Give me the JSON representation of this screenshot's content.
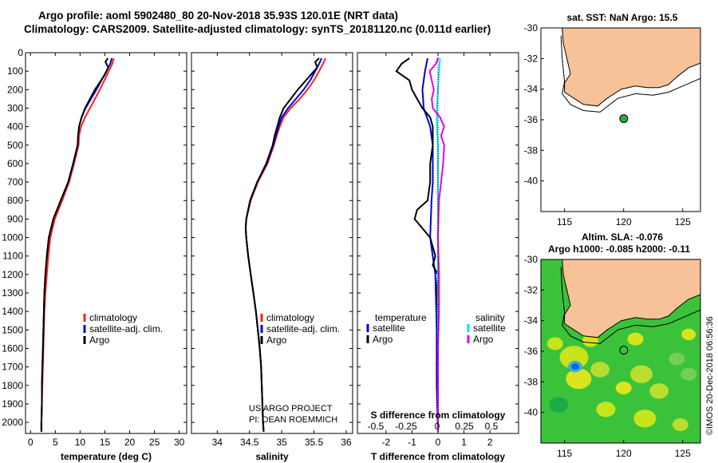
{
  "header": {
    "title_line1": "Argo profile: aoml 5902480_80 20-Nov-2018 35.93S 120.01E (NRT data)",
    "title_line2": "Climatology: CARS2009. Satellite-adjusted climatology: synTS_20181120.nc (0.011d earlier)"
  },
  "colors": {
    "climatology": "#ff2020",
    "satellite": "#0000e0",
    "argo": "#000000",
    "salinity_satellite": "#00e6e6",
    "salinity_argo": "#e600e6",
    "land": "#f7c297",
    "float_marker": "#2aa84a"
  },
  "depth_axis": {
    "ticks": [
      0,
      100,
      200,
      300,
      400,
      500,
      600,
      700,
      800,
      900,
      1000,
      1100,
      1200,
      1300,
      1400,
      1500,
      1600,
      1700,
      1800,
      1900,
      2000
    ],
    "range": [
      0,
      2060
    ]
  },
  "chart_data": [
    {
      "type": "line",
      "id": "temperature",
      "xlabel": "temperature (deg C)",
      "xlim": [
        -1,
        31.5
      ],
      "xticks": [
        0,
        5,
        10,
        15,
        20,
        25,
        30
      ],
      "ylim": [
        2060,
        0
      ],
      "legend": [
        "climatology",
        "satellite-adj. clim.",
        "Argo"
      ],
      "series": [
        {
          "name": "climatology",
          "depth": [
            30,
            60,
            100,
            150,
            200,
            250,
            300,
            350,
            400,
            450,
            500,
            600,
            700,
            800,
            900,
            1000,
            1100,
            1200,
            1300,
            1400,
            1500,
            1600,
            1700,
            1800,
            1900,
            2000,
            2050
          ],
          "values": [
            16.8,
            16.5,
            15.8,
            14.9,
            14.0,
            13.0,
            12.0,
            11.0,
            10.2,
            9.8,
            9.7,
            8.8,
            7.8,
            6.4,
            4.9,
            4.0,
            3.6,
            3.3,
            3.0,
            2.8,
            2.7,
            2.6,
            2.5,
            2.4,
            2.3,
            2.2,
            2.2
          ]
        },
        {
          "name": "satellite-adj. clim.",
          "depth": [
            30,
            60,
            100,
            150,
            200,
            250,
            300,
            350,
            400,
            450,
            500,
            600,
            700,
            800,
            900,
            1000,
            1100,
            1200,
            1300,
            1400,
            1500,
            1600,
            1700,
            1800,
            1900,
            2000,
            2050
          ],
          "values": [
            16.4,
            16.1,
            15.3,
            14.3,
            13.3,
            12.2,
            11.1,
            10.3,
            9.8,
            9.6,
            9.5,
            8.6,
            7.6,
            6.1,
            4.6,
            3.7,
            3.3,
            3.0,
            2.8,
            2.7,
            2.6,
            2.5,
            2.4,
            2.3,
            2.3,
            2.2,
            2.2
          ]
        },
        {
          "name": "Argo",
          "depth": [
            30,
            50,
            80,
            120,
            160,
            200,
            250,
            300,
            350,
            400,
            450,
            500,
            600,
            700,
            800,
            900,
            1000,
            1100,
            1200,
            1300,
            1400,
            1500,
            1600,
            1700,
            1800,
            1900,
            2000,
            2050
          ],
          "values": [
            15.6,
            15.1,
            15.7,
            15.0,
            14.0,
            13.0,
            12.0,
            11.0,
            10.3,
            9.8,
            9.6,
            9.5,
            8.6,
            7.6,
            6.1,
            4.6,
            3.7,
            3.3,
            3.0,
            2.8,
            2.7,
            2.6,
            2.5,
            2.4,
            2.3,
            2.3,
            2.2,
            2.2
          ]
        }
      ]
    },
    {
      "type": "line",
      "id": "salinity",
      "xlabel": "salinity",
      "xlim": [
        33.6,
        36.1
      ],
      "xticks": [
        34,
        34.5,
        35,
        35.5,
        36
      ],
      "ylim": [
        2060,
        0
      ],
      "legend": [
        "climatology",
        "satellite-adj. clim.",
        "Argo"
      ],
      "annotation": [
        "US ARGO PROJECT",
        "PI: DEAN ROEMMICH"
      ],
      "series": [
        {
          "name": "climatology",
          "depth": [
            30,
            60,
            100,
            150,
            200,
            250,
            300,
            350,
            400,
            450,
            500,
            600,
            700,
            800,
            900,
            950,
            1000,
            1100,
            1200,
            1300,
            1400,
            1500,
            1600,
            1700,
            1800,
            1900,
            2000,
            2050
          ],
          "values": [
            35.68,
            35.64,
            35.58,
            35.5,
            35.4,
            35.28,
            35.14,
            35.03,
            34.97,
            34.92,
            34.88,
            34.78,
            34.63,
            34.52,
            34.45,
            34.44,
            34.45,
            34.48,
            34.52,
            34.56,
            34.6,
            34.63,
            34.66,
            34.68,
            34.69,
            34.7,
            34.71,
            34.72
          ]
        },
        {
          "name": "satellite-adj. clim.",
          "depth": [
            30,
            60,
            100,
            150,
            200,
            250,
            300,
            350,
            400,
            450,
            500,
            600,
            700,
            800,
            900,
            950,
            1000,
            1100,
            1200,
            1300,
            1400,
            1500,
            1600,
            1700,
            1800,
            1900,
            2000,
            2050
          ],
          "values": [
            35.62,
            35.58,
            35.52,
            35.44,
            35.34,
            35.22,
            35.1,
            35.0,
            34.95,
            34.91,
            34.87,
            34.77,
            34.62,
            34.51,
            34.45,
            34.44,
            34.45,
            34.48,
            34.52,
            34.56,
            34.6,
            34.63,
            34.66,
            34.68,
            34.69,
            34.7,
            34.71,
            34.72
          ]
        },
        {
          "name": "Argo",
          "depth": [
            30,
            50,
            80,
            120,
            160,
            200,
            250,
            300,
            350,
            400,
            450,
            500,
            600,
            700,
            800,
            900,
            950,
            1000,
            1100,
            1200,
            1300,
            1400,
            1500,
            1600,
            1700,
            1800,
            1900,
            2000,
            2050
          ],
          "values": [
            35.58,
            35.52,
            35.55,
            35.45,
            35.35,
            35.25,
            35.14,
            35.03,
            34.97,
            34.93,
            34.89,
            34.86,
            34.76,
            34.62,
            34.51,
            34.45,
            34.44,
            34.45,
            34.48,
            34.52,
            34.56,
            34.6,
            34.63,
            34.66,
            34.68,
            34.69,
            34.7,
            34.71,
            34.72
          ]
        }
      ]
    },
    {
      "type": "line",
      "id": "differences",
      "xlabel": "T difference from climatology",
      "xlim": [
        -3.1,
        3.1
      ],
      "xticks": [
        -2,
        -1,
        0,
        1,
        2
      ],
      "secondary_xlabel": "S difference from climatology",
      "secondary_xtick_labels": [
        "-0.5",
        "-0.25",
        "0",
        "0.25",
        "0.5"
      ],
      "ylim": [
        2060,
        0
      ],
      "legend_left_title": "temperature",
      "legend_right_title": "salinity",
      "legend": [
        "satellite",
        "Argo"
      ],
      "series": [
        {
          "name": "temperature satellite",
          "depth": [
            30,
            100,
            200,
            300,
            400,
            500,
            600,
            700,
            800,
            1000,
            1200,
            1500,
            1800,
            2050
          ],
          "values": [
            -0.4,
            -0.5,
            -0.6,
            -0.55,
            -0.3,
            -0.2,
            -0.2,
            -0.2,
            -0.25,
            -0.3,
            -0.1,
            -0.05,
            -0.05,
            0
          ]
        },
        {
          "name": "temperature Argo",
          "depth": [
            30,
            60,
            100,
            150,
            200,
            250,
            300,
            350,
            400,
            500,
            600,
            700,
            800,
            850,
            900,
            950,
            1000,
            1050,
            1100,
            1150,
            1200,
            1300,
            1400,
            1600,
            1800,
            2050
          ],
          "values": [
            -1.1,
            -1.4,
            -1.6,
            -1.1,
            -1.0,
            -0.8,
            -0.6,
            -0.3,
            -0.2,
            -0.2,
            -0.3,
            -0.3,
            -0.4,
            -0.8,
            -0.9,
            -0.6,
            -0.3,
            -0.2,
            -0.1,
            -0.2,
            0,
            -0.05,
            0,
            0,
            0,
            0
          ]
        },
        {
          "name": "salinity satellite",
          "depth": [
            30,
            100,
            200,
            300,
            400,
            500,
            700,
            900,
            1200,
            1500,
            1800,
            2050
          ],
          "values": [
            0.02,
            0.01,
            0.0,
            -0.01,
            -0.01,
            0,
            0,
            0,
            0,
            0,
            0,
            0
          ]
        },
        {
          "name": "salinity Argo",
          "depth": [
            30,
            60,
            100,
            150,
            200,
            250,
            300,
            350,
            400,
            450,
            500,
            600,
            700,
            800,
            1000,
            1200,
            1400,
            1600,
            1800,
            2050
          ],
          "values": [
            0.0,
            -0.02,
            -0.08,
            -0.06,
            -0.04,
            -0.06,
            -0.05,
            0.02,
            0.06,
            0.03,
            0.06,
            0.05,
            0.03,
            0.01,
            0.0,
            0.01,
            0.01,
            0.0,
            0.0,
            0.0
          ]
        }
      ]
    },
    {
      "type": "map",
      "id": "map_sst",
      "title": "sat. SST: NaN Argo: 15.5",
      "lon_range": [
        113,
        126.5
      ],
      "lat_range": [
        -42,
        -30
      ],
      "xticks": [
        115,
        120,
        125
      ],
      "yticks": [
        -30,
        -32,
        -34,
        -36,
        -38,
        -40
      ],
      "float_position": {
        "lon": 120.01,
        "lat": -35.93
      }
    },
    {
      "type": "heatmap",
      "id": "map_sla",
      "title_line1": "Altim. SLA: -0.076",
      "title_line2": "Argo h1000: -0.085 h2000: -0.11",
      "lon_range": [
        113,
        126.5
      ],
      "lat_range": [
        -42,
        -30
      ],
      "xticks": [
        115,
        120,
        125
      ],
      "yticks": [
        -30,
        -32,
        -34,
        -36,
        -38,
        -40
      ],
      "float_position": {
        "lon": 120.01,
        "lat": -35.93
      },
      "credit": "©IMOS 20-Dec-2018 06:56:36"
    }
  ]
}
